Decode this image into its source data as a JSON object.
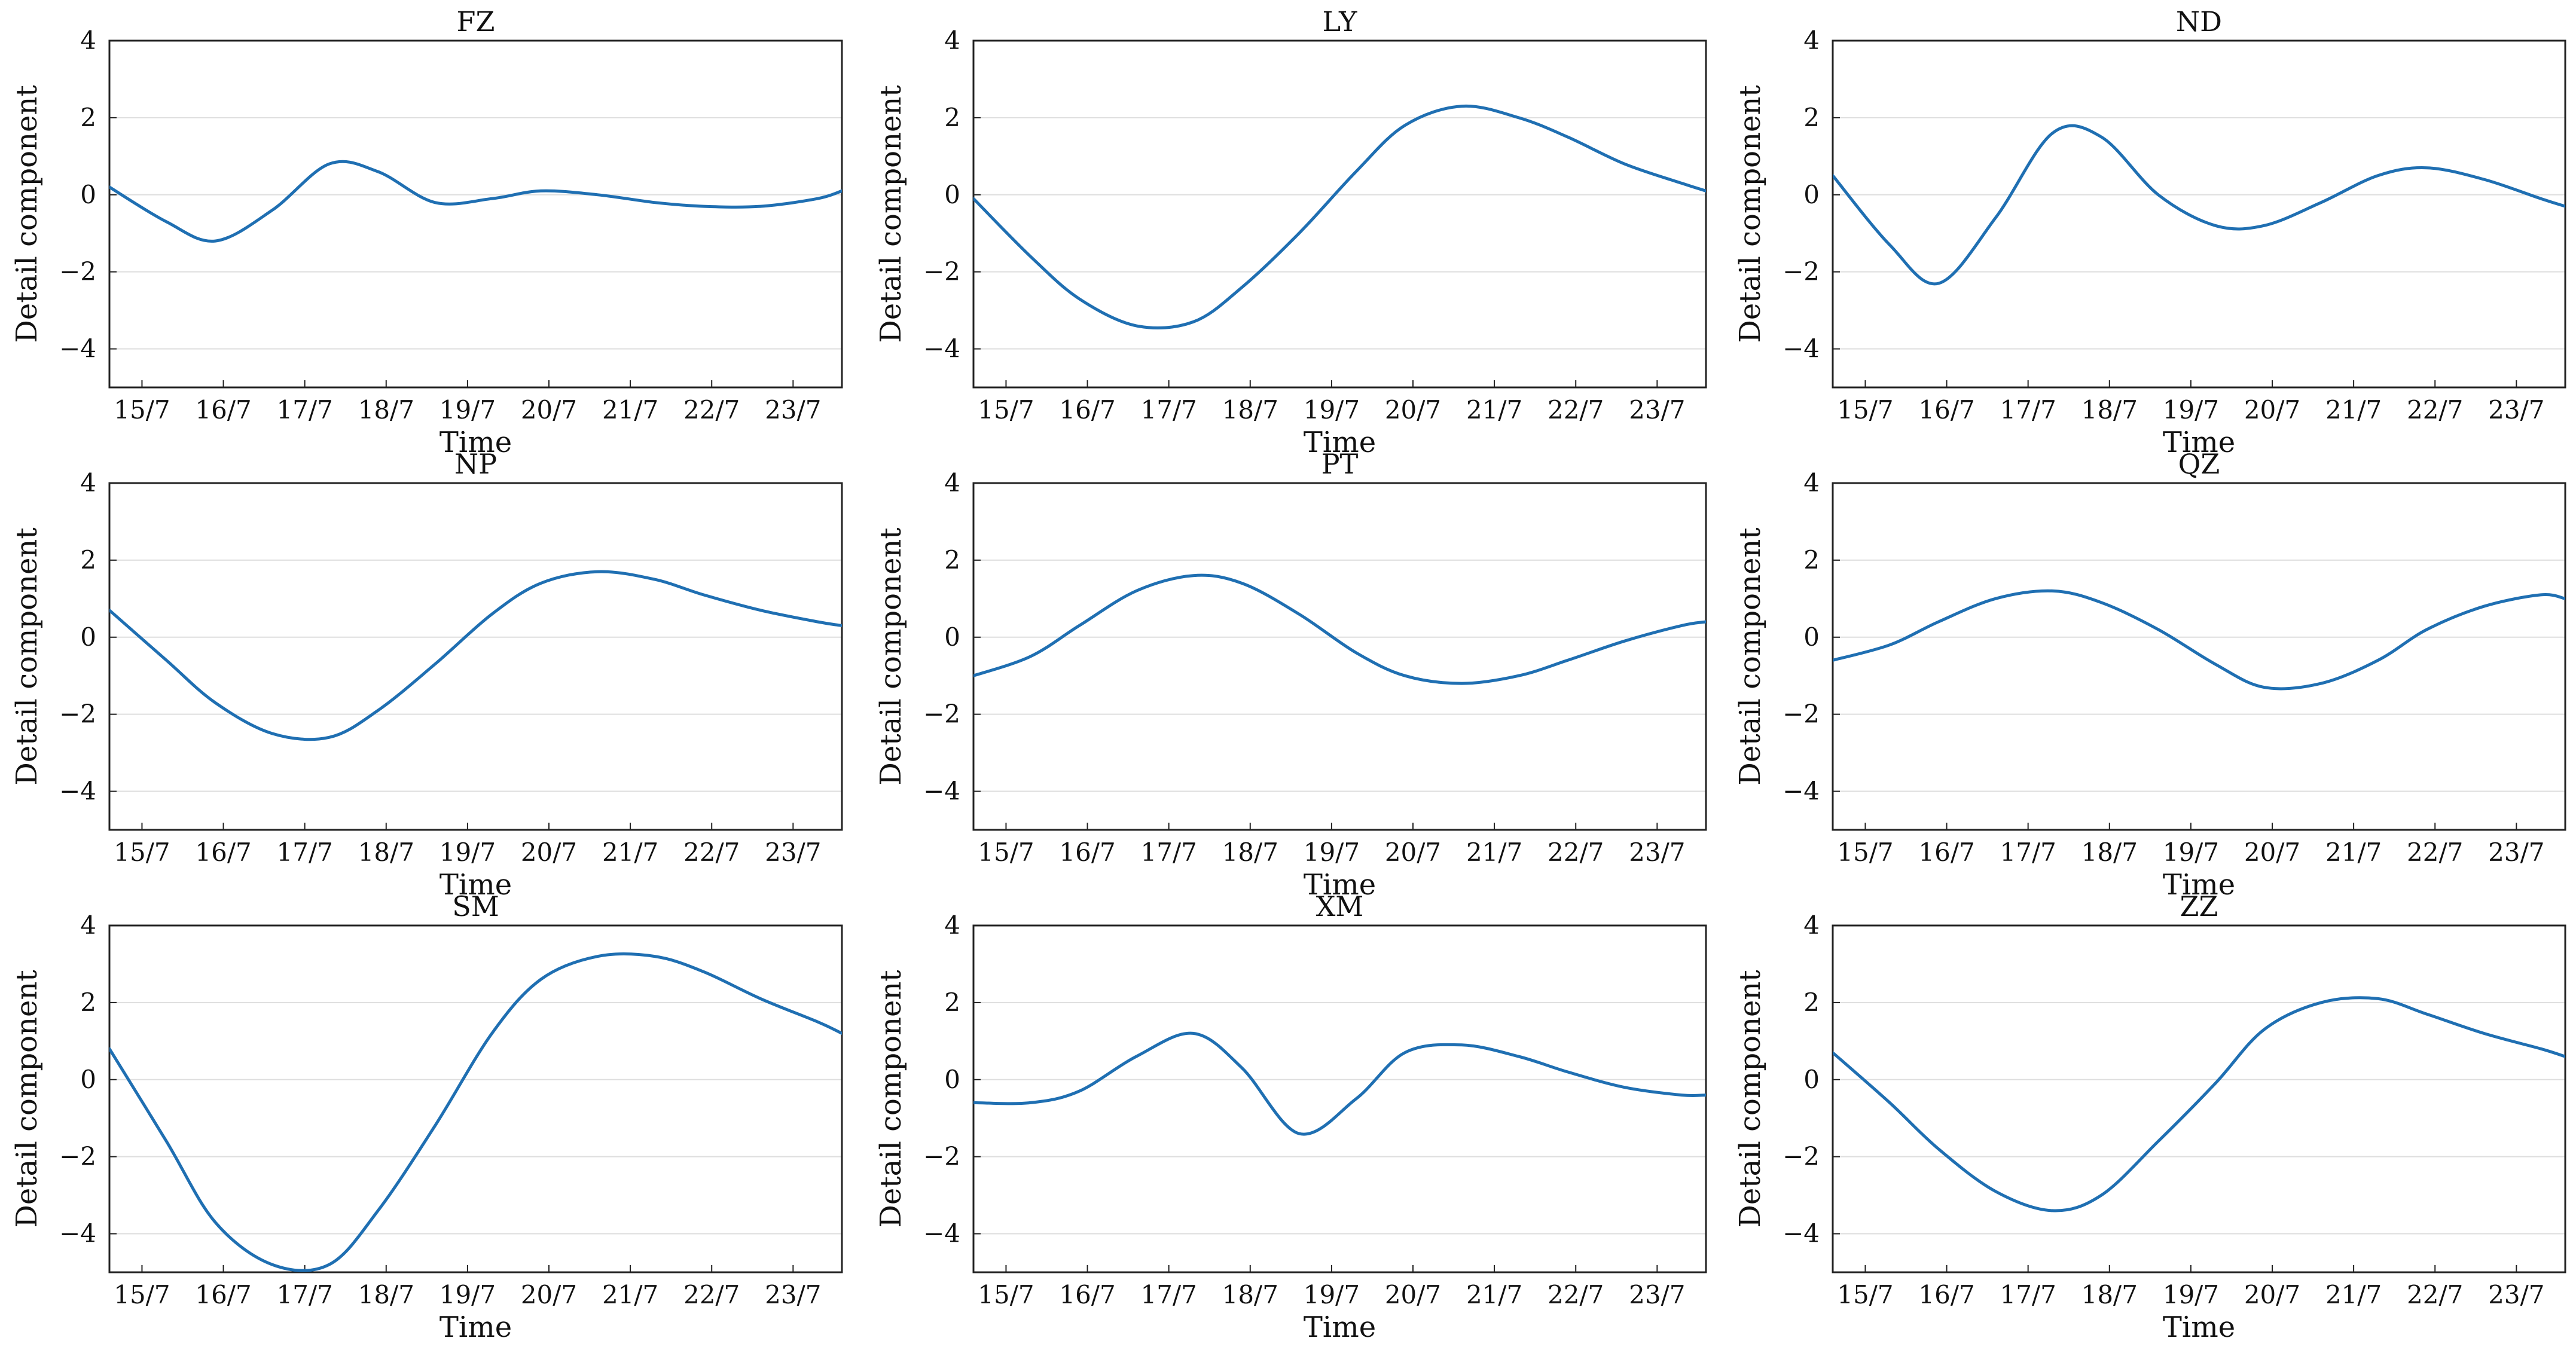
{
  "line_color": "#1f6fb2",
  "chart_data": [
    {
      "type": "line",
      "title": "FZ",
      "xlabel": "Time",
      "ylabel": "Detail component",
      "ylim": [
        -5,
        4
      ],
      "xlim": [
        14.6,
        23.6
      ],
      "grid": "horizontal",
      "yticks": [
        {
          "value": -4,
          "label": "−4"
        },
        {
          "value": -2,
          "label": "−2"
        },
        {
          "value": 0,
          "label": "0"
        },
        {
          "value": 2,
          "label": "2"
        },
        {
          "value": 4,
          "label": "4"
        }
      ],
      "xticks": [
        {
          "value": 15,
          "label": "15/7"
        },
        {
          "value": 16,
          "label": "16/7"
        },
        {
          "value": 17,
          "label": "17/7"
        },
        {
          "value": 18,
          "label": "18/7"
        },
        {
          "value": 19,
          "label": "19/7"
        },
        {
          "value": 20,
          "label": "20/7"
        },
        {
          "value": 21,
          "label": "21/7"
        },
        {
          "value": 22,
          "label": "22/7"
        },
        {
          "value": 23,
          "label": "23/7"
        }
      ],
      "series": [
        {
          "name": "FZ",
          "x": [
            14.6,
            15.3,
            15.9,
            16.6,
            17.3,
            17.9,
            18.6,
            19.3,
            19.9,
            20.6,
            21.3,
            21.9,
            22.6,
            23.3,
            23.6
          ],
          "y": [
            0.2,
            -0.7,
            -1.2,
            -0.4,
            0.8,
            0.6,
            -0.2,
            -0.1,
            0.1,
            0.0,
            -0.2,
            -0.3,
            -0.3,
            -0.1,
            0.1
          ]
        }
      ]
    },
    {
      "type": "line",
      "title": "LY",
      "xlabel": "Time",
      "ylabel": "Detail component",
      "ylim": [
        -5,
        4
      ],
      "xlim": [
        14.6,
        23.6
      ],
      "grid": "horizontal",
      "yticks": [
        {
          "value": -4,
          "label": "−4"
        },
        {
          "value": -2,
          "label": "−2"
        },
        {
          "value": 0,
          "label": "0"
        },
        {
          "value": 2,
          "label": "2"
        },
        {
          "value": 4,
          "label": "4"
        }
      ],
      "xticks": [
        {
          "value": 15,
          "label": "15/7"
        },
        {
          "value": 16,
          "label": "16/7"
        },
        {
          "value": 17,
          "label": "17/7"
        },
        {
          "value": 18,
          "label": "18/7"
        },
        {
          "value": 19,
          "label": "19/7"
        },
        {
          "value": 20,
          "label": "20/7"
        },
        {
          "value": 21,
          "label": "21/7"
        },
        {
          "value": 22,
          "label": "22/7"
        },
        {
          "value": 23,
          "label": "23/7"
        }
      ],
      "series": [
        {
          "name": "LY",
          "x": [
            14.6,
            15.3,
            15.9,
            16.6,
            17.3,
            17.9,
            18.6,
            19.3,
            19.9,
            20.6,
            21.3,
            21.9,
            22.6,
            23.3,
            23.6
          ],
          "y": [
            -0.1,
            -1.6,
            -2.7,
            -3.4,
            -3.3,
            -2.4,
            -1.0,
            0.6,
            1.8,
            2.3,
            2.0,
            1.5,
            0.8,
            0.3,
            0.1
          ]
        }
      ]
    },
    {
      "type": "line",
      "title": "ND",
      "xlabel": "Time",
      "ylabel": "Detail component",
      "ylim": [
        -5,
        4
      ],
      "xlim": [
        14.6,
        23.6
      ],
      "grid": "horizontal",
      "yticks": [
        {
          "value": -4,
          "label": "−4"
        },
        {
          "value": -2,
          "label": "−2"
        },
        {
          "value": 0,
          "label": "0"
        },
        {
          "value": 2,
          "label": "2"
        },
        {
          "value": 4,
          "label": "4"
        }
      ],
      "xticks": [
        {
          "value": 15,
          "label": "15/7"
        },
        {
          "value": 16,
          "label": "16/7"
        },
        {
          "value": 17,
          "label": "17/7"
        },
        {
          "value": 18,
          "label": "18/7"
        },
        {
          "value": 19,
          "label": "19/7"
        },
        {
          "value": 20,
          "label": "20/7"
        },
        {
          "value": 21,
          "label": "21/7"
        },
        {
          "value": 22,
          "label": "22/7"
        },
        {
          "value": 23,
          "label": "23/7"
        }
      ],
      "series": [
        {
          "name": "ND",
          "x": [
            14.6,
            15.3,
            15.9,
            16.6,
            17.3,
            17.9,
            18.6,
            19.3,
            19.9,
            20.6,
            21.3,
            21.9,
            22.6,
            23.3,
            23.6
          ],
          "y": [
            0.5,
            -1.3,
            -2.3,
            -0.6,
            1.6,
            1.5,
            0.0,
            -0.8,
            -0.8,
            -0.2,
            0.5,
            0.7,
            0.4,
            -0.1,
            -0.3
          ]
        }
      ]
    },
    {
      "type": "line",
      "title": "NP",
      "xlabel": "Time",
      "ylabel": "Detail component",
      "ylim": [
        -5,
        4
      ],
      "xlim": [
        14.6,
        23.6
      ],
      "grid": "horizontal",
      "yticks": [
        {
          "value": -4,
          "label": "−4"
        },
        {
          "value": -2,
          "label": "−2"
        },
        {
          "value": 0,
          "label": "0"
        },
        {
          "value": 2,
          "label": "2"
        },
        {
          "value": 4,
          "label": "4"
        }
      ],
      "xticks": [
        {
          "value": 15,
          "label": "15/7"
        },
        {
          "value": 16,
          "label": "16/7"
        },
        {
          "value": 17,
          "label": "17/7"
        },
        {
          "value": 18,
          "label": "18/7"
        },
        {
          "value": 19,
          "label": "19/7"
        },
        {
          "value": 20,
          "label": "20/7"
        },
        {
          "value": 21,
          "label": "21/7"
        },
        {
          "value": 22,
          "label": "22/7"
        },
        {
          "value": 23,
          "label": "23/7"
        }
      ],
      "series": [
        {
          "name": "NP",
          "x": [
            14.6,
            15.3,
            15.9,
            16.6,
            17.3,
            17.9,
            18.6,
            19.3,
            19.9,
            20.6,
            21.3,
            21.9,
            22.6,
            23.3,
            23.6
          ],
          "y": [
            0.7,
            -0.6,
            -1.7,
            -2.5,
            -2.6,
            -1.9,
            -0.7,
            0.6,
            1.4,
            1.7,
            1.5,
            1.1,
            0.7,
            0.4,
            0.3
          ]
        }
      ]
    },
    {
      "type": "line",
      "title": "PT",
      "xlabel": "Time",
      "ylabel": "Detail component",
      "ylim": [
        -5,
        4
      ],
      "xlim": [
        14.6,
        23.6
      ],
      "grid": "horizontal",
      "yticks": [
        {
          "value": -4,
          "label": "−4"
        },
        {
          "value": -2,
          "label": "−2"
        },
        {
          "value": 0,
          "label": "0"
        },
        {
          "value": 2,
          "label": "2"
        },
        {
          "value": 4,
          "label": "4"
        }
      ],
      "xticks": [
        {
          "value": 15,
          "label": "15/7"
        },
        {
          "value": 16,
          "label": "16/7"
        },
        {
          "value": 17,
          "label": "17/7"
        },
        {
          "value": 18,
          "label": "18/7"
        },
        {
          "value": 19,
          "label": "19/7"
        },
        {
          "value": 20,
          "label": "20/7"
        },
        {
          "value": 21,
          "label": "21/7"
        },
        {
          "value": 22,
          "label": "22/7"
        },
        {
          "value": 23,
          "label": "23/7"
        }
      ],
      "series": [
        {
          "name": "PT",
          "x": [
            14.6,
            15.3,
            15.9,
            16.6,
            17.3,
            17.9,
            18.6,
            19.3,
            19.9,
            20.6,
            21.3,
            21.9,
            22.6,
            23.3,
            23.6
          ],
          "y": [
            -1.0,
            -0.5,
            0.3,
            1.2,
            1.6,
            1.4,
            0.6,
            -0.4,
            -1.0,
            -1.2,
            -1.0,
            -0.6,
            -0.1,
            0.3,
            0.4
          ]
        }
      ]
    },
    {
      "type": "line",
      "title": "QZ",
      "xlabel": "Time",
      "ylabel": "Detail component",
      "ylim": [
        -5,
        4
      ],
      "xlim": [
        14.6,
        23.6
      ],
      "grid": "horizontal",
      "yticks": [
        {
          "value": -4,
          "label": "−4"
        },
        {
          "value": -2,
          "label": "−2"
        },
        {
          "value": 0,
          "label": "0"
        },
        {
          "value": 2,
          "label": "2"
        },
        {
          "value": 4,
          "label": "4"
        }
      ],
      "xticks": [
        {
          "value": 15,
          "label": "15/7"
        },
        {
          "value": 16,
          "label": "16/7"
        },
        {
          "value": 17,
          "label": "17/7"
        },
        {
          "value": 18,
          "label": "18/7"
        },
        {
          "value": 19,
          "label": "19/7"
        },
        {
          "value": 20,
          "label": "20/7"
        },
        {
          "value": 21,
          "label": "21/7"
        },
        {
          "value": 22,
          "label": "22/7"
        },
        {
          "value": 23,
          "label": "23/7"
        }
      ],
      "series": [
        {
          "name": "QZ",
          "x": [
            14.6,
            15.3,
            15.9,
            16.6,
            17.3,
            17.9,
            18.6,
            19.3,
            19.9,
            20.6,
            21.3,
            21.9,
            22.6,
            23.3,
            23.6
          ],
          "y": [
            -0.6,
            -0.2,
            0.4,
            1.0,
            1.2,
            0.9,
            0.2,
            -0.7,
            -1.3,
            -1.2,
            -0.6,
            0.2,
            0.8,
            1.1,
            1.0
          ]
        }
      ]
    },
    {
      "type": "line",
      "title": "SM",
      "xlabel": "Time",
      "ylabel": "Detail component",
      "ylim": [
        -5,
        4
      ],
      "xlim": [
        14.6,
        23.6
      ],
      "grid": "horizontal",
      "yticks": [
        {
          "value": -4,
          "label": "−4"
        },
        {
          "value": -2,
          "label": "−2"
        },
        {
          "value": 0,
          "label": "0"
        },
        {
          "value": 2,
          "label": "2"
        },
        {
          "value": 4,
          "label": "4"
        }
      ],
      "xticks": [
        {
          "value": 15,
          "label": "15/7"
        },
        {
          "value": 16,
          "label": "16/7"
        },
        {
          "value": 17,
          "label": "17/7"
        },
        {
          "value": 18,
          "label": "18/7"
        },
        {
          "value": 19,
          "label": "19/7"
        },
        {
          "value": 20,
          "label": "20/7"
        },
        {
          "value": 21,
          "label": "21/7"
        },
        {
          "value": 22,
          "label": "22/7"
        },
        {
          "value": 23,
          "label": "23/7"
        }
      ],
      "series": [
        {
          "name": "SM",
          "x": [
            14.6,
            15.3,
            15.9,
            16.6,
            17.3,
            17.9,
            18.6,
            19.3,
            19.9,
            20.6,
            21.3,
            21.9,
            22.6,
            23.3,
            23.6
          ],
          "y": [
            0.8,
            -1.6,
            -3.7,
            -4.8,
            -4.8,
            -3.4,
            -1.2,
            1.2,
            2.6,
            3.2,
            3.2,
            2.8,
            2.1,
            1.5,
            1.2
          ]
        }
      ]
    },
    {
      "type": "line",
      "title": "XM",
      "xlabel": "Time",
      "ylabel": "Detail component",
      "ylim": [
        -5,
        4
      ],
      "xlim": [
        14.6,
        23.6
      ],
      "grid": "horizontal",
      "yticks": [
        {
          "value": -4,
          "label": "−4"
        },
        {
          "value": -2,
          "label": "−2"
        },
        {
          "value": 0,
          "label": "0"
        },
        {
          "value": 2,
          "label": "2"
        },
        {
          "value": 4,
          "label": "4"
        }
      ],
      "xticks": [
        {
          "value": 15,
          "label": "15/7"
        },
        {
          "value": 16,
          "label": "16/7"
        },
        {
          "value": 17,
          "label": "17/7"
        },
        {
          "value": 18,
          "label": "18/7"
        },
        {
          "value": 19,
          "label": "19/7"
        },
        {
          "value": 20,
          "label": "20/7"
        },
        {
          "value": 21,
          "label": "21/7"
        },
        {
          "value": 22,
          "label": "22/7"
        },
        {
          "value": 23,
          "label": "23/7"
        }
      ],
      "series": [
        {
          "name": "XM",
          "x": [
            14.6,
            15.3,
            15.9,
            16.6,
            17.3,
            17.9,
            18.6,
            19.3,
            19.9,
            20.6,
            21.3,
            21.9,
            22.6,
            23.3,
            23.6
          ],
          "y": [
            -0.6,
            -0.6,
            -0.3,
            0.6,
            1.2,
            0.3,
            -1.4,
            -0.5,
            0.7,
            0.9,
            0.6,
            0.2,
            -0.2,
            -0.4,
            -0.4
          ]
        }
      ]
    },
    {
      "type": "line",
      "title": "ZZ",
      "xlabel": "Time",
      "ylabel": "Detail component",
      "ylim": [
        -5,
        4
      ],
      "xlim": [
        14.6,
        23.6
      ],
      "grid": "horizontal",
      "yticks": [
        {
          "value": -4,
          "label": "−4"
        },
        {
          "value": -2,
          "label": "−2"
        },
        {
          "value": 0,
          "label": "0"
        },
        {
          "value": 2,
          "label": "2"
        },
        {
          "value": 4,
          "label": "4"
        }
      ],
      "xticks": [
        {
          "value": 15,
          "label": "15/7"
        },
        {
          "value": 16,
          "label": "16/7"
        },
        {
          "value": 17,
          "label": "17/7"
        },
        {
          "value": 18,
          "label": "18/7"
        },
        {
          "value": 19,
          "label": "19/7"
        },
        {
          "value": 20,
          "label": "20/7"
        },
        {
          "value": 21,
          "label": "21/7"
        },
        {
          "value": 22,
          "label": "22/7"
        },
        {
          "value": 23,
          "label": "23/7"
        }
      ],
      "series": [
        {
          "name": "ZZ",
          "x": [
            14.6,
            15.3,
            15.9,
            16.6,
            17.3,
            17.9,
            18.6,
            19.3,
            19.9,
            20.6,
            21.3,
            21.9,
            22.6,
            23.3,
            23.6
          ],
          "y": [
            0.7,
            -0.6,
            -1.8,
            -2.9,
            -3.4,
            -3.0,
            -1.6,
            -0.1,
            1.3,
            2.0,
            2.1,
            1.7,
            1.2,
            0.8,
            0.6
          ]
        }
      ]
    }
  ]
}
